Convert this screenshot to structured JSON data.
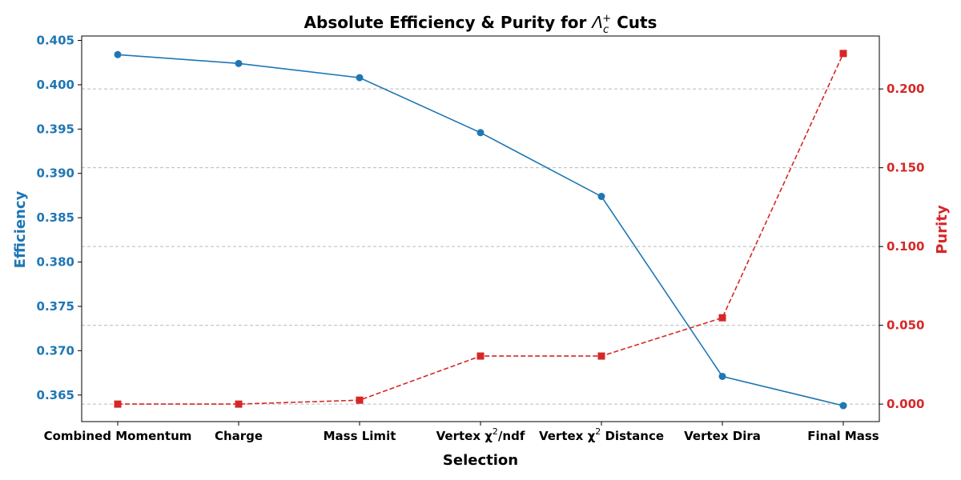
{
  "chart_data": {
    "type": "line",
    "title": "Absolute Efficiency & Purity for Λc+ Cuts",
    "title_main": "Absolute Efficiency & Purity for ",
    "title_symbol": "Λ",
    "title_sub": "c",
    "title_sup": "+",
    "title_end": " Cuts",
    "xlabel": "Selection",
    "categories": [
      "Combined Momentum",
      "Charge",
      "Mass Limit",
      "Vertex χ2/ndf",
      "Vertex χ2 Distance",
      "Vertex Dira",
      "Final Mass"
    ],
    "category_parts": [
      {
        "a": "Combined Momentum",
        "sup": "",
        "b": ""
      },
      {
        "a": "Charge",
        "sup": "",
        "b": ""
      },
      {
        "a": "Mass Limit",
        "sup": "",
        "b": ""
      },
      {
        "a": "Vertex χ",
        "sup": "2",
        "b": "/ndf"
      },
      {
        "a": "Vertex χ",
        "sup": "2",
        "b": " Distance"
      },
      {
        "a": "Vertex Dira",
        "sup": "",
        "b": ""
      },
      {
        "a": "Final Mass",
        "sup": "",
        "b": ""
      }
    ],
    "series": [
      {
        "name": "Efficiency",
        "axis": "left",
        "color": "#1f77b4",
        "style": "solid",
        "marker": "circle",
        "values": [
          0.4034,
          0.4024,
          0.4008,
          0.3946,
          0.3874,
          0.3671,
          0.3638
        ]
      },
      {
        "name": "Purity",
        "axis": "right",
        "color": "#d62728",
        "style": "dashed",
        "marker": "square",
        "values": [
          0.0,
          0.0,
          0.0025,
          0.0305,
          0.0305,
          0.0548,
          0.2225
        ]
      }
    ],
    "y_left": {
      "label": "Efficiency",
      "color": "#1f77b4",
      "ylim": [
        0.362,
        0.4055
      ],
      "ticks": [
        0.365,
        0.37,
        0.375,
        0.38,
        0.385,
        0.39,
        0.395,
        0.4,
        0.405
      ],
      "tick_labels": [
        "0.365",
        "0.370",
        "0.375",
        "0.380",
        "0.385",
        "0.390",
        "0.395",
        "0.400",
        "0.405"
      ]
    },
    "y_right": {
      "label": "Purity",
      "color": "#d62728",
      "ylim": [
        -0.0111,
        0.2336
      ],
      "ticks": [
        0.0,
        0.05,
        0.1,
        0.15,
        0.2
      ],
      "tick_labels": [
        "0.000",
        "0.050",
        "0.100",
        "0.150",
        "0.200"
      ]
    },
    "grid": "horizontal dashed (right axis ticks)"
  }
}
